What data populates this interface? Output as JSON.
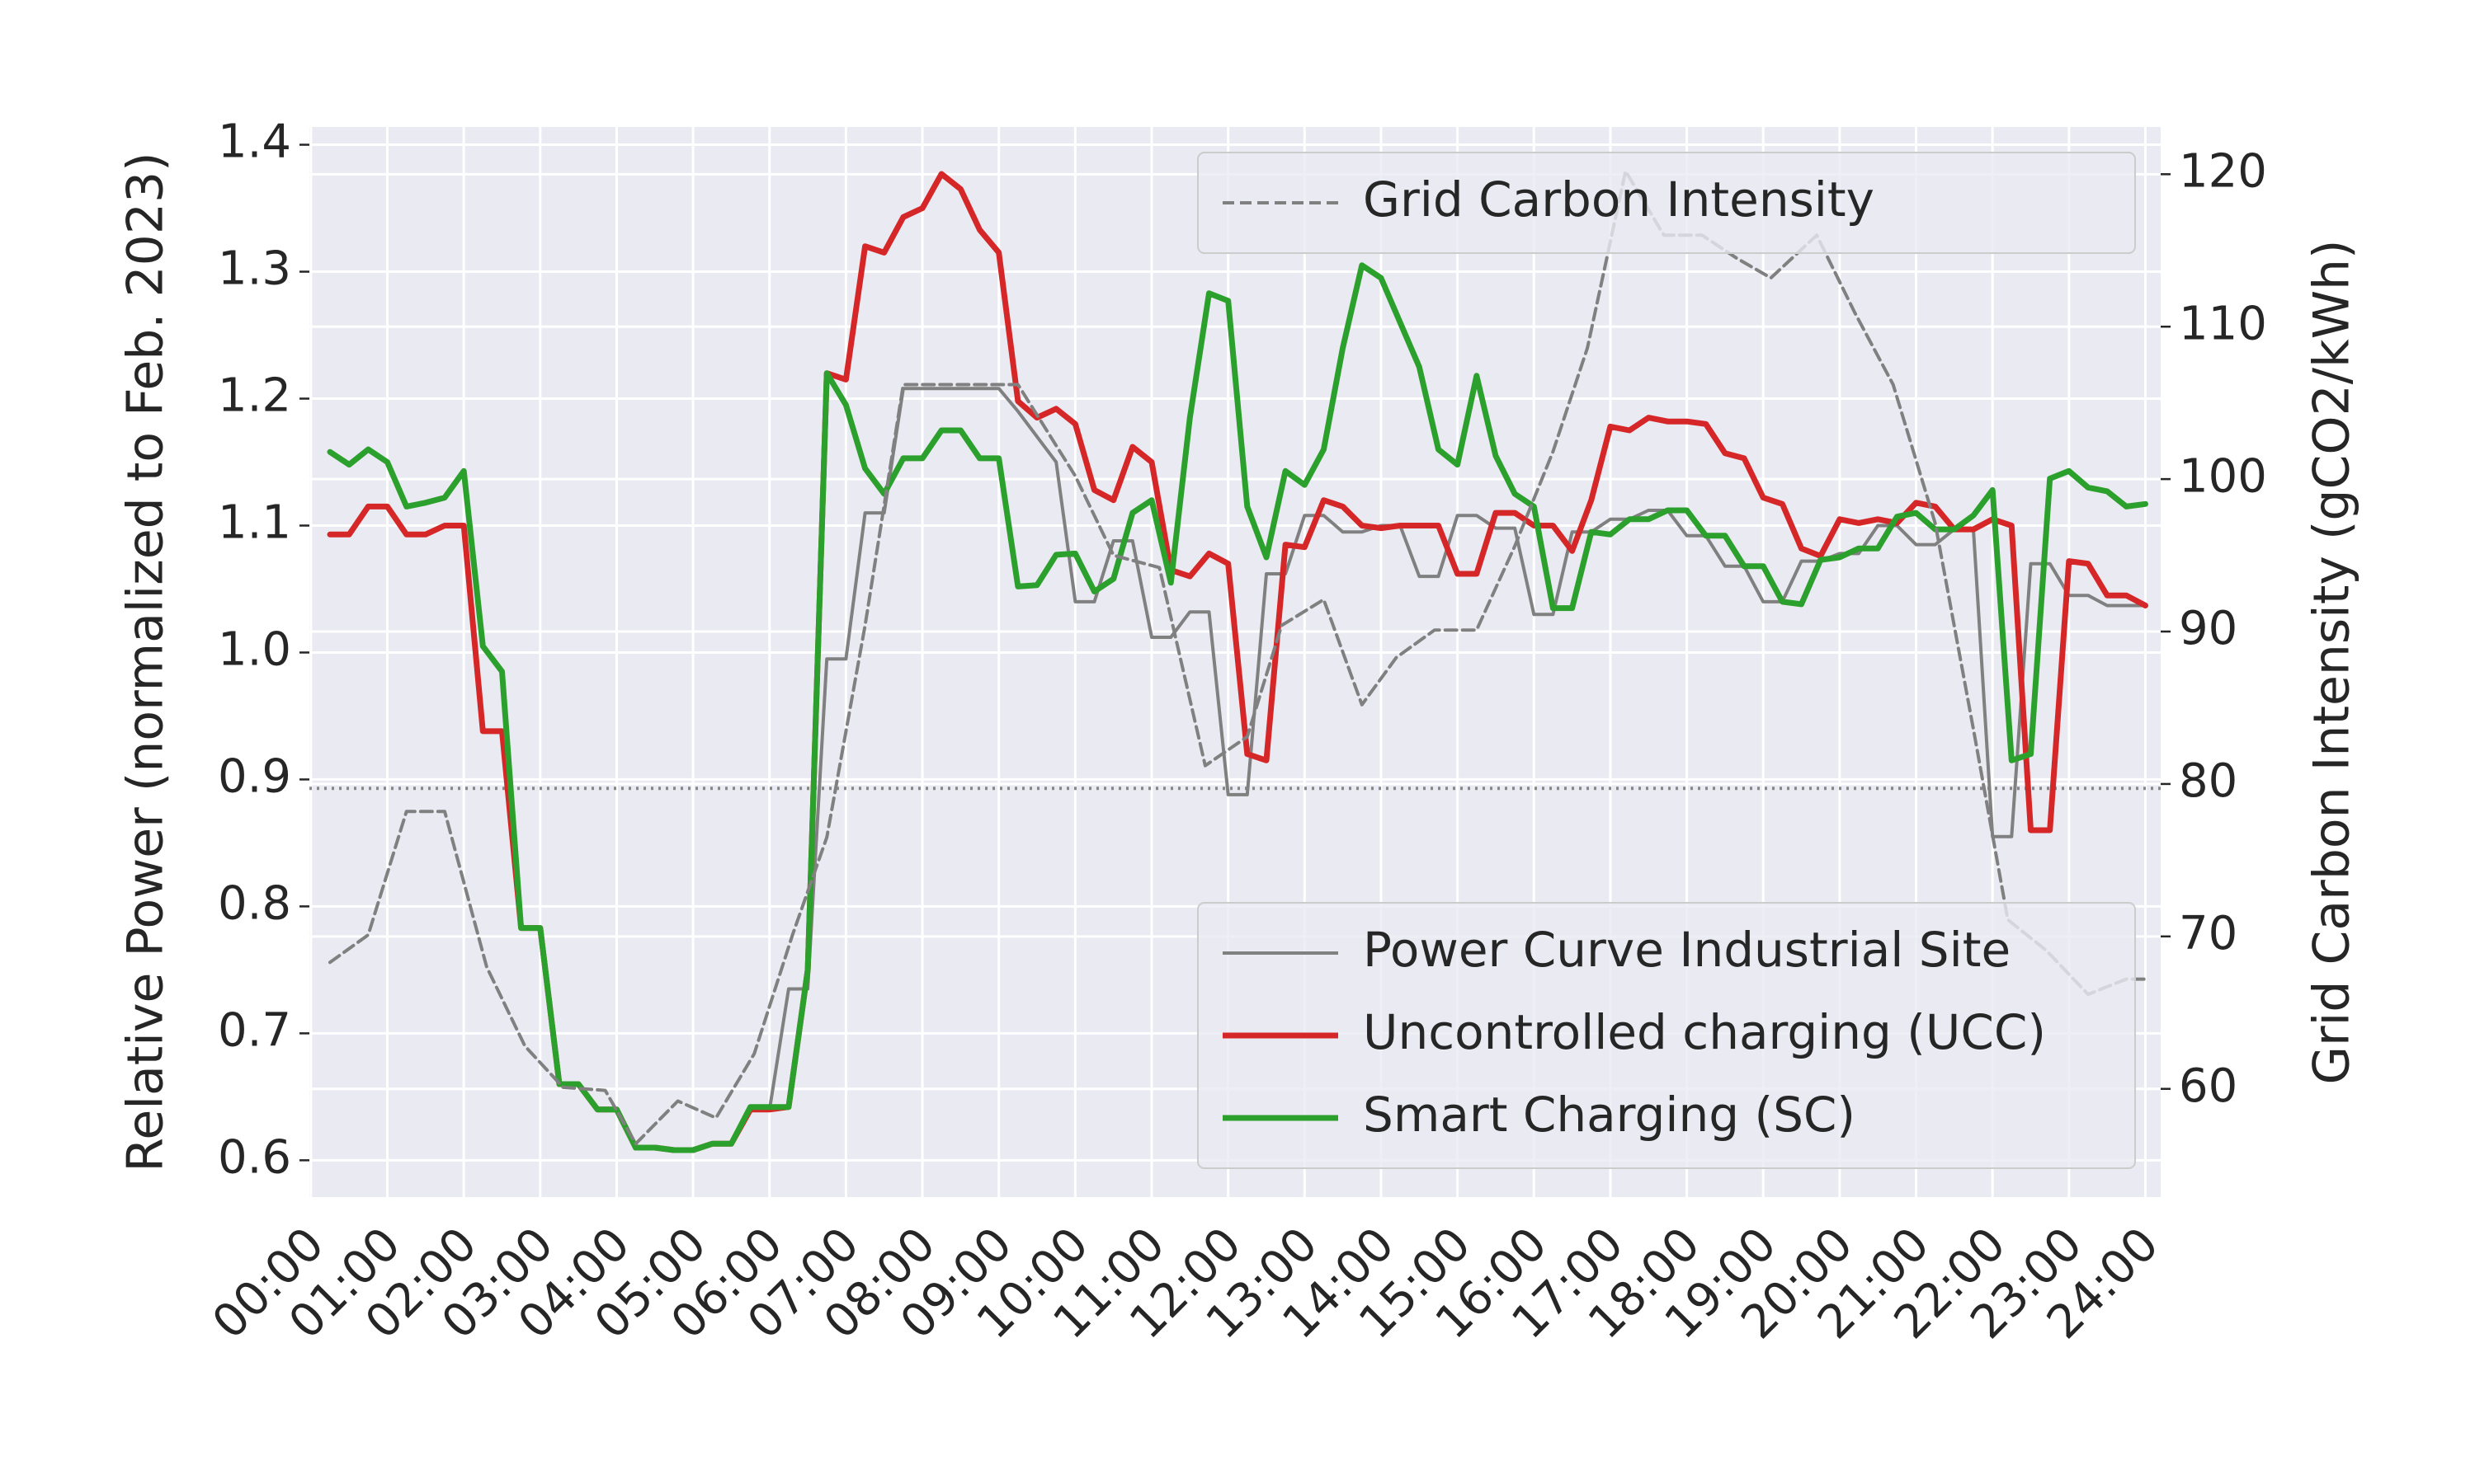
{
  "chart_data": {
    "type": "line",
    "ylabel": "Relative Power (normalized to Feb. 2023)",
    "y2label": "Grid Carbon Intensity (gCO2/kWh)",
    "xlim": [
      -0.02,
      24.2
    ],
    "ylim": [
      0.571,
      1.414
    ],
    "y2lim": [
      52.9,
      123.1
    ],
    "grid": true,
    "legend": {
      "y": "lower right",
      "y2": "upper right"
    },
    "hline": {
      "value": 0.893,
      "color": "#888888",
      "style": "dotted"
    },
    "xticks": [
      {
        "value": 0,
        "label": "00:00"
      },
      {
        "value": 1,
        "label": "01:00"
      },
      {
        "value": 2,
        "label": "02:00"
      },
      {
        "value": 3,
        "label": "03:00"
      },
      {
        "value": 4,
        "label": "04:00"
      },
      {
        "value": 5,
        "label": "05:00"
      },
      {
        "value": 6,
        "label": "06:00"
      },
      {
        "value": 7,
        "label": "07:00"
      },
      {
        "value": 8,
        "label": "08:00"
      },
      {
        "value": 9,
        "label": "09:00"
      },
      {
        "value": 10,
        "label": "10:00"
      },
      {
        "value": 11,
        "label": "11:00"
      },
      {
        "value": 12,
        "label": "12:00"
      },
      {
        "value": 13,
        "label": "13:00"
      },
      {
        "value": 14,
        "label": "14:00"
      },
      {
        "value": 15,
        "label": "15:00"
      },
      {
        "value": 16,
        "label": "16:00"
      },
      {
        "value": 17,
        "label": "17:00"
      },
      {
        "value": 18,
        "label": "18:00"
      },
      {
        "value": 19,
        "label": "19:00"
      },
      {
        "value": 20,
        "label": "20:00"
      },
      {
        "value": 21,
        "label": "21:00"
      },
      {
        "value": 22,
        "label": "22:00"
      },
      {
        "value": 23,
        "label": "23:00"
      },
      {
        "value": 24,
        "label": "24:00"
      }
    ],
    "yticks": [
      0.6,
      0.7,
      0.8,
      0.9,
      {
        "value": 1,
        "label": "1.0"
      },
      1.1,
      1.2,
      1.3,
      1.4
    ],
    "y2ticks": [
      60,
      70,
      80,
      90,
      100,
      110,
      120
    ],
    "x": [
      0.25,
      0.5,
      0.75,
      1,
      1.25,
      1.5,
      1.75,
      2,
      2.25,
      2.5,
      2.75,
      3,
      3.25,
      3.5,
      3.75,
      4,
      4.25,
      4.5,
      4.75,
      5,
      5.25,
      5.5,
      5.75,
      6,
      6.25,
      6.5,
      6.75,
      7,
      7.25,
      7.5,
      7.75,
      8,
      8.25,
      8.5,
      8.75,
      9,
      9.25,
      9.5,
      9.75,
      10,
      10.25,
      10.5,
      10.75,
      11,
      11.25,
      11.5,
      11.75,
      12,
      12.25,
      12.5,
      12.75,
      13,
      13.25,
      13.5,
      13.75,
      14,
      14.25,
      14.5,
      14.75,
      15,
      15.25,
      15.5,
      15.75,
      16,
      16.25,
      16.5,
      16.75,
      17,
      17.25,
      17.5,
      17.75,
      18,
      18.25,
      18.5,
      18.75,
      19,
      19.25,
      19.5,
      19.75,
      20,
      20.25,
      20.5,
      20.75,
      21,
      21.25,
      21.5,
      21.75,
      22,
      22.25,
      22.5,
      22.75,
      23,
      23.25,
      23.5,
      23.75,
      24
    ],
    "series": [
      {
        "name": "Power Curve Industrial Site",
        "color": "#808080",
        "width": 4,
        "axis": "y",
        "values": [
          1.093,
          1.093,
          1.115,
          1.115,
          1.093,
          1.093,
          1.1,
          1.1,
          0.938,
          0.938,
          0.783,
          0.783,
          0.66,
          0.66,
          0.64,
          0.64,
          0.61,
          0.61,
          0.608,
          0.608,
          0.613,
          0.613,
          0.64,
          0.64,
          0.735,
          0.735,
          0.995,
          0.995,
          1.11,
          1.11,
          1.208,
          1.208,
          1.208,
          1.208,
          1.208,
          1.208,
          1.19,
          1.17,
          1.15,
          1.04,
          1.04,
          1.088,
          1.088,
          1.012,
          1.012,
          1.032,
          1.032,
          0.888,
          0.888,
          1.062,
          1.062,
          1.108,
          1.108,
          1.095,
          1.095,
          1.1,
          1.1,
          1.06,
          1.06,
          1.108,
          1.108,
          1.098,
          1.098,
          1.03,
          1.03,
          1.095,
          1.095,
          1.105,
          1.105,
          1.112,
          1.112,
          1.092,
          1.092,
          1.068,
          1.068,
          1.04,
          1.04,
          1.072,
          1.072,
          1.078,
          1.078,
          1.1,
          1.1,
          1.085,
          1.085,
          1.097,
          1.097,
          0.855,
          0.855,
          1.07,
          1.07,
          1.045,
          1.045,
          1.037,
          1.037,
          1.037
        ]
      },
      {
        "name": "Uncontrolled charging (UCC)",
        "color": "#d62728",
        "width": 7,
        "axis": "y",
        "values": [
          1.093,
          1.093,
          1.115,
          1.115,
          1.093,
          1.093,
          1.1,
          1.1,
          0.938,
          0.938,
          0.783,
          0.783,
          0.66,
          0.66,
          0.64,
          0.64,
          0.61,
          0.61,
          0.608,
          0.608,
          0.613,
          0.613,
          0.64,
          0.64,
          0.642,
          0.75,
          1.22,
          1.215,
          1.32,
          1.315,
          1.343,
          1.35,
          1.377,
          1.365,
          1.333,
          1.315,
          1.198,
          1.185,
          1.192,
          1.18,
          1.128,
          1.12,
          1.162,
          1.15,
          1.065,
          1.06,
          1.078,
          1.07,
          0.92,
          0.915,
          1.085,
          1.083,
          1.12,
          1.115,
          1.1,
          1.098,
          1.1,
          1.1,
          1.1,
          1.062,
          1.062,
          1.11,
          1.11,
          1.1,
          1.1,
          1.08,
          1.12,
          1.178,
          1.175,
          1.185,
          1.182,
          1.182,
          1.18,
          1.157,
          1.153,
          1.122,
          1.117,
          1.082,
          1.076,
          1.105,
          1.102,
          1.105,
          1.102,
          1.118,
          1.115,
          1.097,
          1.097,
          1.105,
          1.1,
          0.86,
          0.86,
          1.072,
          1.07,
          1.045,
          1.045,
          1.037
        ]
      },
      {
        "name": "Smart Charging (SC)",
        "color": "#2ca02c",
        "width": 7,
        "axis": "y",
        "values": [
          1.158,
          1.148,
          1.16,
          1.15,
          1.115,
          1.118,
          1.122,
          1.143,
          1.005,
          0.985,
          0.783,
          0.783,
          0.66,
          0.66,
          0.64,
          0.64,
          0.61,
          0.61,
          0.608,
          0.608,
          0.613,
          0.613,
          0.642,
          0.642,
          0.642,
          0.75,
          1.22,
          1.195,
          1.145,
          1.125,
          1.153,
          1.153,
          1.175,
          1.175,
          1.153,
          1.153,
          1.052,
          1.053,
          1.077,
          1.078,
          1.048,
          1.058,
          1.11,
          1.12,
          1.055,
          1.185,
          1.283,
          1.277,
          1.115,
          1.075,
          1.143,
          1.132,
          1.16,
          1.24,
          1.305,
          1.295,
          1.26,
          1.225,
          1.16,
          1.148,
          1.218,
          1.155,
          1.125,
          1.115,
          1.035,
          1.035,
          1.095,
          1.093,
          1.105,
          1.105,
          1.112,
          1.112,
          1.092,
          1.092,
          1.068,
          1.068,
          1.04,
          1.038,
          1.073,
          1.075,
          1.082,
          1.082,
          1.107,
          1.11,
          1.097,
          1.097,
          1.108,
          1.128,
          0.915,
          0.92,
          1.137,
          1.143,
          1.13,
          1.127,
          1.115,
          1.117
        ]
      },
      {
        "name": "Grid Carbon Intensity",
        "color": "#808080",
        "width": 4,
        "dash": "dashed",
        "axis": "y2",
        "x": [
          0.25,
          0.75,
          1.25,
          1.75,
          2.3,
          2.8,
          3.3,
          3.85,
          4.25,
          4.8,
          5.3,
          5.8,
          6.3,
          6.75,
          7.25,
          7.75,
          9.25,
          10,
          10.5,
          11.1,
          11.7,
          12.25,
          12.7,
          13.25,
          13.75,
          14.2,
          14.7,
          15.25,
          15.75,
          16.25,
          16.7,
          17.2,
          17.7,
          18.2,
          18.65,
          19.1,
          19.7,
          20.2,
          20.7,
          21.25,
          21.75,
          22.2,
          22.7,
          23.25,
          23.75,
          24
        ],
        "values": [
          68.3,
          70.1,
          78.2,
          78.2,
          68,
          62.8,
          60.1,
          59.9,
          56.4,
          59.2,
          58.1,
          62.3,
          70.1,
          76.5,
          90.4,
          106.2,
          106.2,
          100.2,
          95,
          94.2,
          81.2,
          83.1,
          90.4,
          92.1,
          85.2,
          88.3,
          90.1,
          90.1,
          95.6,
          101.8,
          108.6,
          120.2,
          116,
          116,
          114.5,
          113.2,
          116,
          110.9,
          106.2,
          97.1,
          83.6,
          71.1,
          69.1,
          66.2,
          67.2,
          67.2
        ]
      }
    ]
  }
}
